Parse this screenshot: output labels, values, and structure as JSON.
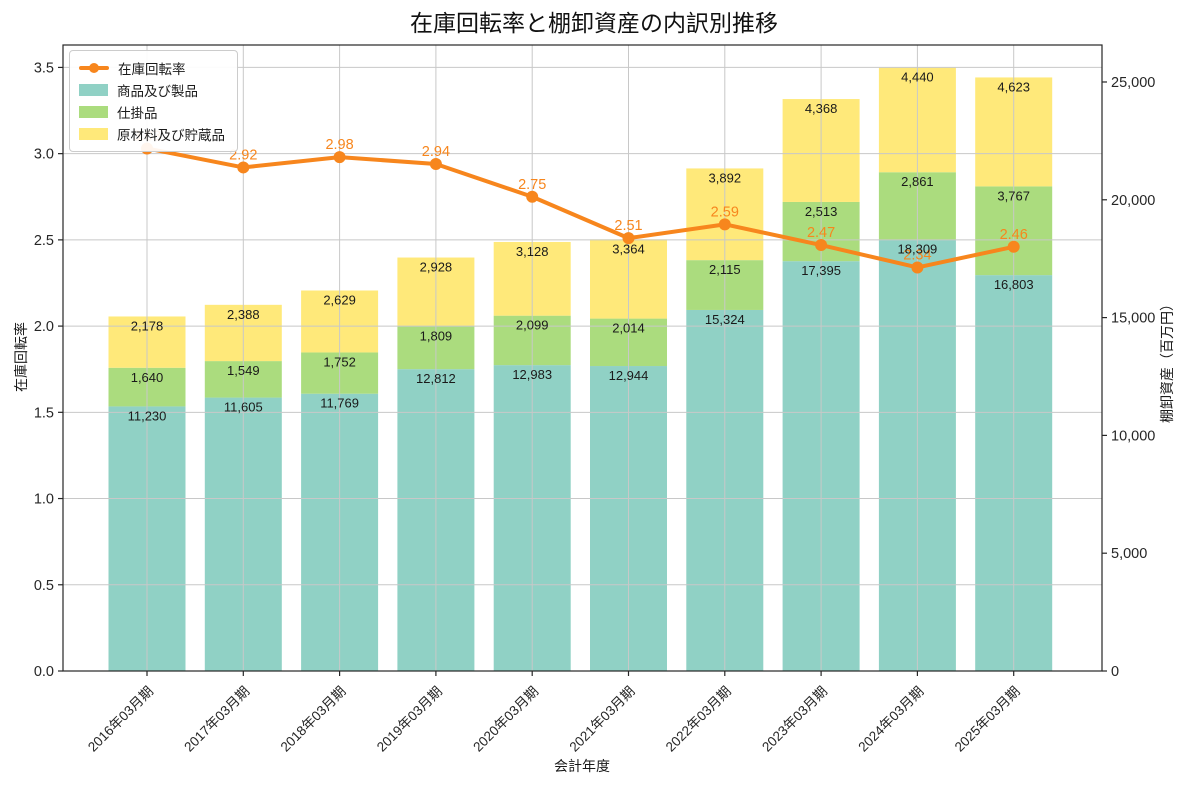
{
  "figure_title": "在庫回転率と棚卸資産の内訳別推移",
  "chart_data": {
    "type": "combo-stacked-bar-line",
    "categories": [
      "2016年03月期",
      "2017年03月期",
      "2018年03月期",
      "2019年03月期",
      "2020年03月期",
      "2021年03月期",
      "2022年03月期",
      "2023年03月期",
      "2024年03月期",
      "2025年03月期"
    ],
    "bar_series": [
      {
        "name": "商品及び製品",
        "color": "#90d1c5",
        "values": [
          11230,
          11605,
          11769,
          12812,
          12983,
          12944,
          15324,
          17395,
          18309,
          16803
        ]
      },
      {
        "name": "仕掛品",
        "color": "#abdc7e",
        "values": [
          1640,
          1549,
          1752,
          1809,
          2099,
          2014,
          2115,
          2513,
          2861,
          3767
        ]
      },
      {
        "name": "原材料及び貯蔵品",
        "color": "#ffe97a",
        "values": [
          2178,
          2388,
          2629,
          2928,
          3128,
          3364,
          3892,
          4368,
          4440,
          4623
        ]
      }
    ],
    "line_series": {
      "name": "在庫回転率",
      "color": "#f7861d",
      "values": [
        3.03,
        2.92,
        2.98,
        2.94,
        2.75,
        2.51,
        2.59,
        2.47,
        2.34,
        2.46
      ]
    },
    "axes": {
      "left": {
        "label": "在庫回転率",
        "tick_min": 0,
        "tick_max": 3.5,
        "tick_step": 0.5,
        "scale_max": 3.63
      },
      "right": {
        "label": "棚卸資産（百万円）",
        "tick_min": 0,
        "tick_max": 25000,
        "tick_step": 5000,
        "scale_max": 26570
      },
      "x": {
        "label": "会計年度"
      }
    },
    "legend": {
      "position": "upper-left",
      "entries": [
        {
          "name": "在庫回転率",
          "type": "line",
          "color": "#f7861d"
        },
        {
          "name": "商品及び製品",
          "type": "patch",
          "color": "#90d1c5"
        },
        {
          "name": "仕掛品",
          "type": "patch",
          "color": "#abdc7e"
        },
        {
          "name": "原材料及び貯蔵品",
          "type": "patch",
          "color": "#ffe97a"
        }
      ]
    },
    "grid": true,
    "colors": {
      "grid": "#c8c8c8",
      "spine": "#262626",
      "tick_text": "#262626",
      "bar_label_text": "#1a1a1a",
      "background": "#ffffff"
    }
  }
}
